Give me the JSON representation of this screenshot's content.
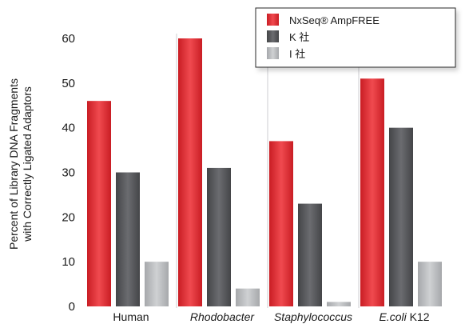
{
  "chart_data": {
    "type": "bar",
    "title": "",
    "xlabel": "",
    "ylabel_lines": [
      "Percent of Library DNA Fragments",
      "with Correctly Ligated Adaptors"
    ],
    "ylim": [
      0,
      60
    ],
    "yticks": [
      0,
      10,
      20,
      30,
      40,
      50,
      60
    ],
    "grid": false,
    "legend_position": "top-right",
    "categories": [
      {
        "label": "Human",
        "italic": false
      },
      {
        "label": "Rhodobacter",
        "italic": true
      },
      {
        "label": "Staphylococcus",
        "italic": true
      },
      {
        "label_italic_part": "E.coli",
        "label_plain_part": " K12",
        "label": "E.coli K12",
        "italic": "partial"
      }
    ],
    "series": [
      {
        "name": "NxSeq® AmpFREE",
        "color": "#e0282e",
        "values": [
          46,
          60,
          37,
          51
        ]
      },
      {
        "name": "K 社",
        "color": "#555659",
        "values": [
          30,
          31,
          23,
          40
        ]
      },
      {
        "name": "I 社",
        "color": "#b3b5b8",
        "values": [
          10,
          4,
          1,
          10
        ]
      }
    ]
  }
}
